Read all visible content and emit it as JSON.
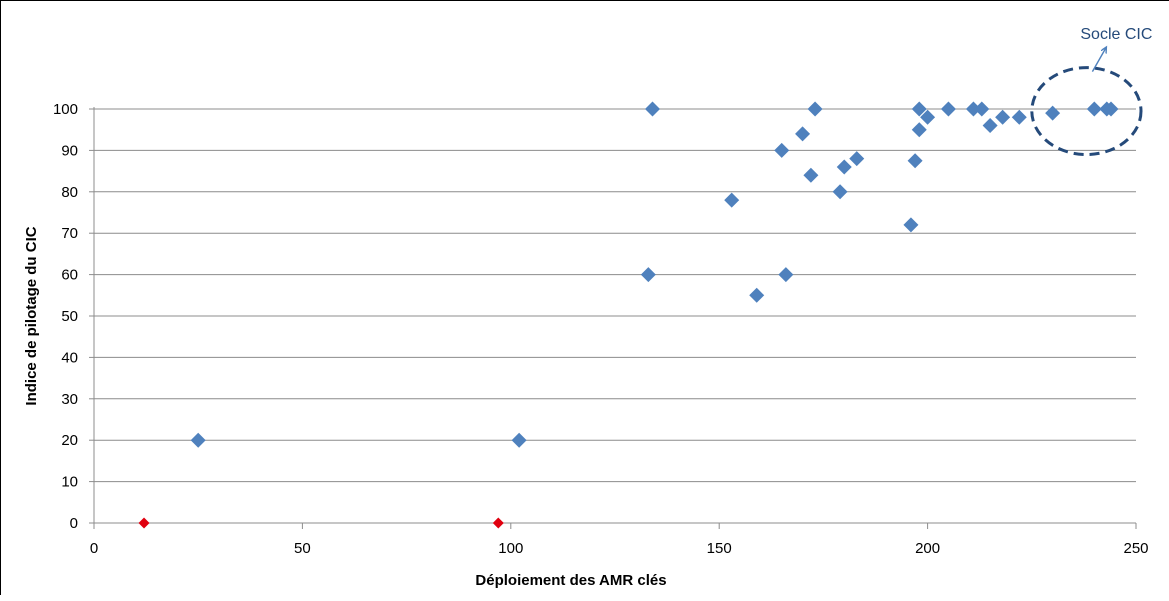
{
  "chart_data": {
    "type": "scatter",
    "title": "",
    "xlabel": "Déploiement des AMR clés",
    "ylabel": "Indice de pilotage du CIC",
    "xlim": [
      0,
      250
    ],
    "ylim": [
      0,
      100
    ],
    "x_ticks": [
      0,
      50,
      100,
      150,
      200,
      250
    ],
    "y_ticks": [
      0,
      10,
      20,
      30,
      40,
      50,
      60,
      70,
      80,
      90,
      100
    ],
    "grid": "horizontal",
    "legend": "none",
    "series": [
      {
        "color": "#4F81BD",
        "marker": "diamond",
        "points": [
          {
            "x": 25,
            "y": 20
          },
          {
            "x": 102,
            "y": 20
          },
          {
            "x": 133,
            "y": 60
          },
          {
            "x": 134,
            "y": 100
          },
          {
            "x": 153,
            "y": 78
          },
          {
            "x": 159,
            "y": 55
          },
          {
            "x": 165,
            "y": 90
          },
          {
            "x": 166,
            "y": 60
          },
          {
            "x": 170,
            "y": 94
          },
          {
            "x": 172,
            "y": 84
          },
          {
            "x": 173,
            "y": 100
          },
          {
            "x": 179,
            "y": 80
          },
          {
            "x": 180,
            "y": 86
          },
          {
            "x": 183,
            "y": 88
          },
          {
            "x": 196,
            "y": 72
          },
          {
            "x": 197,
            "y": 87.5
          },
          {
            "x": 198,
            "y": 95
          },
          {
            "x": 198,
            "y": 100
          },
          {
            "x": 200,
            "y": 98
          },
          {
            "x": 205,
            "y": 100
          },
          {
            "x": 211,
            "y": 100
          },
          {
            "x": 213,
            "y": 100
          },
          {
            "x": 215,
            "y": 96
          },
          {
            "x": 218,
            "y": 98
          },
          {
            "x": 222,
            "y": 98
          },
          {
            "x": 230,
            "y": 99
          },
          {
            "x": 240,
            "y": 100
          },
          {
            "x": 243,
            "y": 100
          },
          {
            "x": 244,
            "y": 100
          }
        ]
      },
      {
        "color": "#E0000F",
        "marker": "diamond",
        "points": [
          {
            "x": 12,
            "y": 0
          },
          {
            "x": 97,
            "y": 0
          }
        ]
      }
    ],
    "annotations": [
      {
        "text": "Socle CIC",
        "style": "dashed-ellipse",
        "color": "#254A7A",
        "x_range": [
          225,
          250
        ],
        "y_range": [
          89,
          110
        ]
      }
    ]
  }
}
